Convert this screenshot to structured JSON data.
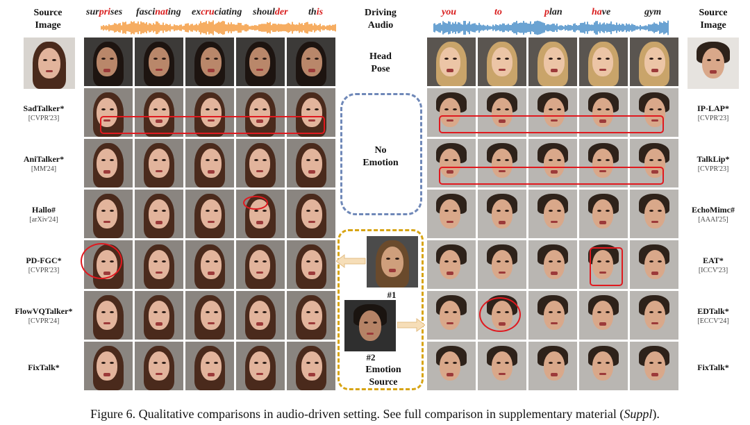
{
  "headers": {
    "source_left": [
      "Source",
      "Image"
    ],
    "driving_audio": [
      "Driving",
      "Audio"
    ],
    "source_right": [
      "Source",
      "Image"
    ]
  },
  "left_words": [
    {
      "pre": "sur",
      "hl": "pri",
      "post": "ses"
    },
    {
      "pre": "fasci",
      "hl": "nat",
      "post": "ing"
    },
    {
      "pre": "ex",
      "hl": "cru",
      "post": "ciating"
    },
    {
      "pre": "shoul",
      "hl": "der",
      "post": ""
    },
    {
      "pre": "th",
      "hl": "is",
      "post": ""
    }
  ],
  "right_words": [
    {
      "pre": "",
      "hl": "you",
      "post": ""
    },
    {
      "pre": "",
      "hl": "to",
      "post": ""
    },
    {
      "pre": "",
      "hl": "p",
      "post": "lan"
    },
    {
      "pre": "",
      "hl": "ha",
      "post": "ve"
    },
    {
      "pre": "",
      "hl": "",
      "post": "gym"
    }
  ],
  "middle": {
    "head_pose": [
      "Head",
      "Pose"
    ],
    "no_emotion": [
      "No",
      "Emotion"
    ],
    "ref1": "#1",
    "ref2": "#2",
    "emotion_source": [
      "Emotion",
      "Source"
    ]
  },
  "left_methods": [
    {
      "name": "SadTalker*",
      "venue": "[CVPR'23]"
    },
    {
      "name": "AniTalker*",
      "venue": "[MM'24]"
    },
    {
      "name": "Hallo#",
      "venue": "[arXiv'24]"
    },
    {
      "name": "PD-FGC*",
      "venue": "[CVPR'23]"
    },
    {
      "name": "FlowVQTalker*",
      "venue": "[CVPR'24]"
    },
    {
      "name": "FixTalk*",
      "venue": ""
    }
  ],
  "right_methods": [
    {
      "name": "IP-LAP*",
      "venue": "[CVPR'23]"
    },
    {
      "name": "TalkLip*",
      "venue": "[CVPR'23]"
    },
    {
      "name": "EchoMimc#",
      "venue": "[AAAI'25]"
    },
    {
      "name": "EAT*",
      "venue": "[ICCV'23]"
    },
    {
      "name": "EDTalk*",
      "venue": "[ECCV'24]"
    },
    {
      "name": "FixTalk*",
      "venue": ""
    }
  ],
  "caption": {
    "main": "Figure 6. Qualitative comparisons in audio-driven setting. See full comparison in supplementary material (",
    "italic": "Suppl",
    "end": ")."
  },
  "colors": {
    "left_wave": "#f28a1e",
    "right_wave": "#2b7bbf",
    "highlight": "#d81b1b",
    "red_mark": "#e0191f",
    "blue_dash": "#6f88b8",
    "gold_dash": "#d7a414"
  }
}
